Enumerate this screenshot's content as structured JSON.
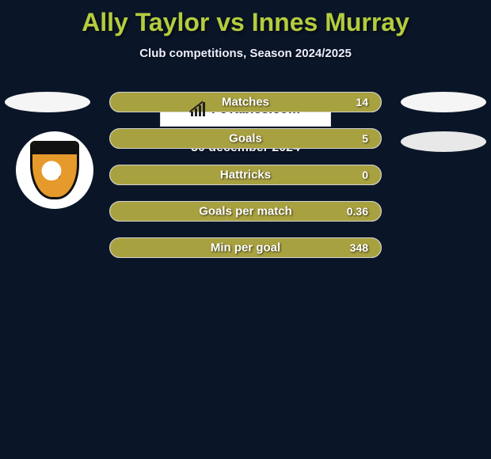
{
  "title_color": "#b4cc3e",
  "title": "Ally Taylor vs Innes Murray",
  "subtitle": "Club competitions, Season 2024/2025",
  "bar_fill_color": "#a8a13f",
  "bar_bg_color": "#ffffff",
  "background_color": "#0a1628",
  "stats": [
    {
      "label": "Matches",
      "value": "14",
      "fill_pct": 100
    },
    {
      "label": "Goals",
      "value": "5",
      "fill_pct": 100
    },
    {
      "label": "Hattricks",
      "value": "0",
      "fill_pct": 100
    },
    {
      "label": "Goals per match",
      "value": "0.36",
      "fill_pct": 100
    },
    {
      "label": "Min per goal",
      "value": "348",
      "fill_pct": 100
    }
  ],
  "brand": "FcTables.com",
  "date": "30 december 2024",
  "logo_bg": "#ffffff",
  "shield_color": "#e59a2b"
}
